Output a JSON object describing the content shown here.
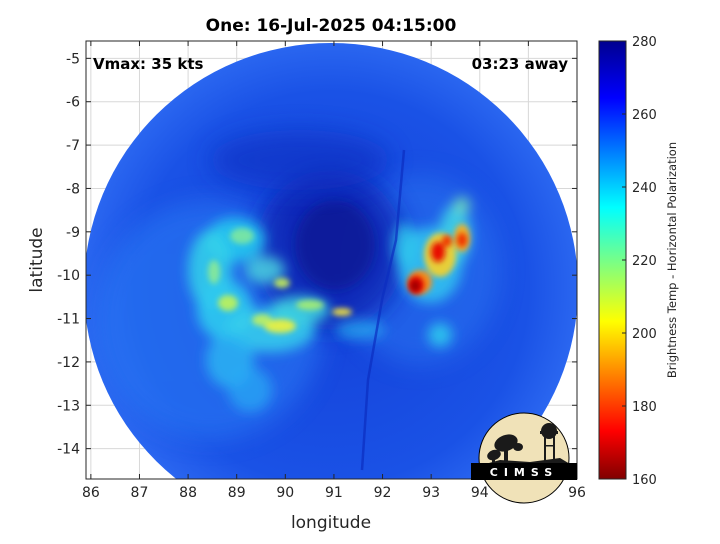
{
  "title": "One: 16-Jul-2025 04:15:00",
  "annotations": {
    "vmax": "Vmax: 35 kts",
    "away": "03:23 away"
  },
  "logo_text": "CIMSS",
  "chart_data": {
    "type": "heatmap",
    "title": "One: 16-Jul-2025 04:15:00",
    "xlabel": "longitude",
    "ylabel": "latitude",
    "xlim": [
      85.9,
      96.0
    ],
    "ylim": [
      -14.7,
      -4.6
    ],
    "xticks": [
      86,
      87,
      88,
      89,
      90,
      91,
      92,
      93,
      94,
      95,
      96
    ],
    "yticks": [
      -5,
      -6,
      -7,
      -8,
      -9,
      -10,
      -11,
      -12,
      -13,
      -14
    ],
    "grid": true,
    "swath_center": [
      91.0,
      -9.6
    ],
    "colorbar": {
      "label": "Brightness Temp - Horizontal Polarization",
      "min": 160,
      "max": 280,
      "ticks": [
        160,
        180,
        200,
        220,
        240,
        260,
        280
      ],
      "colormap": "jet"
    },
    "features": [
      {
        "name": "eye",
        "lon": 91.1,
        "lat": -9.6,
        "value": 266
      },
      {
        "name": "west-band-1",
        "lon": 88.8,
        "lat": -10.7,
        "value": 218
      },
      {
        "name": "west-band-2",
        "lon": 89.5,
        "lat": -11.2,
        "value": 212
      },
      {
        "name": "west-band-3",
        "lon": 89.0,
        "lat": -9.2,
        "value": 232
      },
      {
        "name": "southwest-arm",
        "lon": 89.5,
        "lat": -12.4,
        "value": 238
      },
      {
        "name": "inner-arc",
        "lon": 90.4,
        "lat": -10.5,
        "value": 210
      },
      {
        "name": "east-core",
        "lon": 92.7,
        "lat": -10.2,
        "value": 168
      },
      {
        "name": "east-cell-2",
        "lon": 93.2,
        "lat": -9.6,
        "value": 178
      },
      {
        "name": "east-cell-3",
        "lon": 93.6,
        "lat": -9.3,
        "value": 185
      },
      {
        "name": "east-cell-4",
        "lon": 93.7,
        "lat": -8.6,
        "value": 215
      },
      {
        "name": "east-band",
        "lon": 93.2,
        "lat": -11.4,
        "value": 236
      }
    ]
  }
}
